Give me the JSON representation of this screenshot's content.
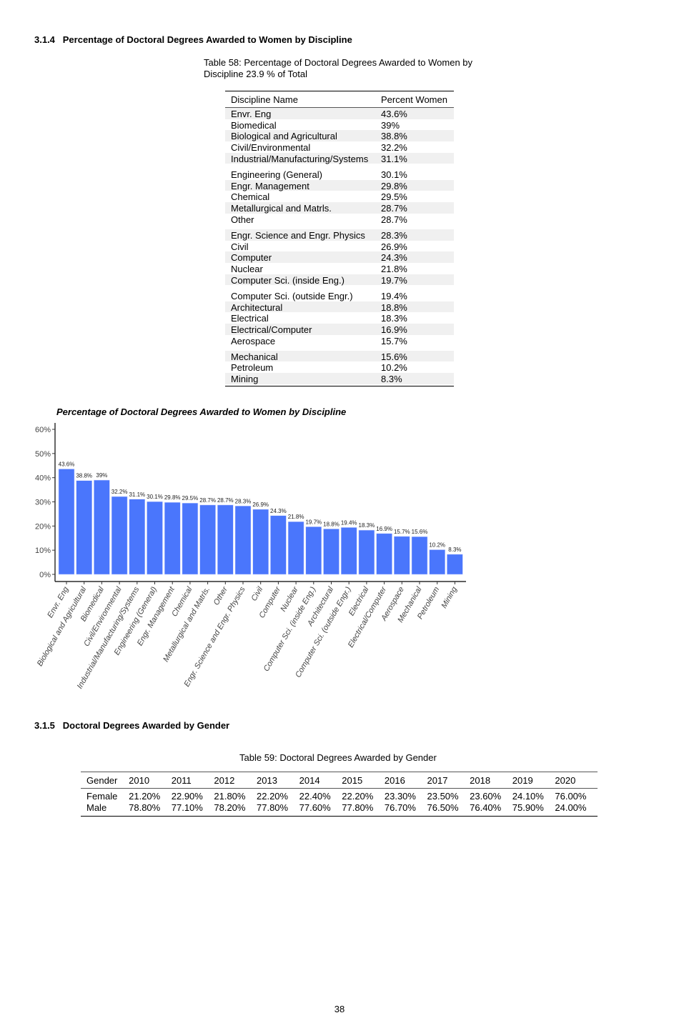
{
  "section_314": {
    "number": "3.1.4",
    "title": "Percentage of Doctoral Degrees Awarded to Women by Discipline"
  },
  "table58": {
    "caption": "Table 58: Percentage of Doctoral Degrees Awarded to Women by Discipline 23.9 % of Total",
    "headers": [
      "Discipline Name",
      "Percent Women"
    ],
    "rows": [
      [
        "Envr. Eng",
        "43.6%"
      ],
      [
        "Biomedical",
        "39%"
      ],
      [
        "Biological and Agricultural",
        "38.8%"
      ],
      [
        "Civil/Environmental",
        "32.2%"
      ],
      [
        "Industrial/Manufacturing/Systems",
        "31.1%"
      ],
      [
        "Engineering (General)",
        "30.1%"
      ],
      [
        "Engr. Management",
        "29.8%"
      ],
      [
        "Chemical",
        "29.5%"
      ],
      [
        "Metallurgical and Matrls.",
        "28.7%"
      ],
      [
        "Other",
        "28.7%"
      ],
      [
        "Engr. Science and Engr. Physics",
        "28.3%"
      ],
      [
        "Civil",
        "26.9%"
      ],
      [
        "Computer",
        "24.3%"
      ],
      [
        "Nuclear",
        "21.8%"
      ],
      [
        "Computer Sci. (inside Eng.)",
        "19.7%"
      ],
      [
        "Computer Sci. (outside Engr.)",
        "19.4%"
      ],
      [
        "Architectural",
        "18.8%"
      ],
      [
        "Electrical",
        "18.3%"
      ],
      [
        "Electrical/Computer",
        "16.9%"
      ],
      [
        "Aerospace",
        "15.7%"
      ],
      [
        "Mechanical",
        "15.6%"
      ],
      [
        "Petroleum",
        "10.2%"
      ],
      [
        "Mining",
        "8.3%"
      ]
    ]
  },
  "chart_data": {
    "type": "bar",
    "title": "Percentage of Doctoral Degrees Awarded to Women by Discipline",
    "xlabel": "",
    "ylabel": "",
    "categories": [
      "Envr. Eng",
      "Biological and Agricultural",
      "Biomedical",
      "Civil/Environmental",
      "Industrial/Manufacturing/Systems",
      "Engineering (General)",
      "Engr. Management",
      "Chemical",
      "Metallurgical and Matrls.",
      "Other",
      "Engr. Science and Engr. Physics",
      "Civil",
      "Computer",
      "Nuclear",
      "Computer Sci. (inside Eng.)",
      "Architectural",
      "Computer Sci. (outside Engr.)",
      "Electrical",
      "Electrical/Computer",
      "Aerospace",
      "Mechanical",
      "Petroleum",
      "Mining"
    ],
    "values": [
      43.6,
      38.8,
      39,
      32.2,
      31.1,
      30.1,
      29.8,
      29.5,
      28.7,
      28.7,
      28.3,
      26.9,
      24.3,
      21.8,
      19.7,
      18.8,
      19.4,
      18.3,
      16.9,
      15.7,
      15.6,
      10.2,
      8.3
    ],
    "data_labels": [
      "43.6%",
      "38.8%",
      "39%",
      "32.2%",
      "31.1%",
      "30.1%",
      "29.8%",
      "29.5%",
      "28.7%",
      "28.7%",
      "28.3%",
      "26.9%",
      "24.3%",
      "21.8%",
      "19.7%",
      "18.8%",
      "19.4%",
      "18.3%",
      "16.9%",
      "15.7%",
      "15.6%",
      "10.2%",
      "8.3%"
    ],
    "yticks": [
      "0%",
      "10%",
      "20%",
      "30%",
      "40%",
      "50%",
      "60%"
    ],
    "ylim": [
      0,
      60
    ],
    "grid": false,
    "bar_color": "#4a76fc"
  },
  "section_315": {
    "number": "3.1.5",
    "title": "Doctoral Degrees Awarded by Gender"
  },
  "table59": {
    "caption": "Table 59: Doctoral Degrees Awarded by Gender",
    "headers": [
      "Gender",
      "2010",
      "2011",
      "2012",
      "2013",
      "2014",
      "2015",
      "2016",
      "2017",
      "2018",
      "2019",
      "2020"
    ],
    "rows": [
      [
        "Female",
        "21.20%",
        "22.90%",
        "21.80%",
        "22.20%",
        "22.40%",
        "22.20%",
        "23.30%",
        "23.50%",
        "23.60%",
        "24.10%",
        "76.00%"
      ],
      [
        "Male",
        "78.80%",
        "77.10%",
        "78.20%",
        "77.80%",
        "77.60%",
        "77.80%",
        "76.70%",
        "76.50%",
        "76.40%",
        "75.90%",
        "24.00%"
      ]
    ]
  },
  "page_number": "38"
}
